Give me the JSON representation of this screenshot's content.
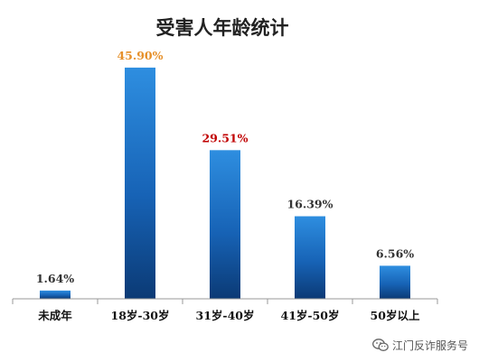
{
  "chart_data": {
    "type": "bar",
    "title": "受害人年龄统计",
    "categories": [
      "未成年",
      "18岁-30岁",
      "31岁-40岁",
      "41岁-50岁",
      "50岁以上"
    ],
    "values": [
      1.64,
      45.9,
      29.51,
      16.39,
      6.56
    ],
    "value_labels": [
      "1.64%",
      "45.90%",
      "29.51%",
      "16.39%",
      "6.56%"
    ],
    "value_label_colors": [
      "#333333",
      "#E6902A",
      "#C00000",
      "#333333",
      "#333333"
    ],
    "ylim": [
      0,
      50
    ],
    "grid": false,
    "legend": "none",
    "bar_color_top": "#2E8EE0",
    "bar_color_bottom": "#0B3A75"
  },
  "watermark": {
    "text": "江门反诈服务号",
    "icon": "wechat-icon"
  }
}
